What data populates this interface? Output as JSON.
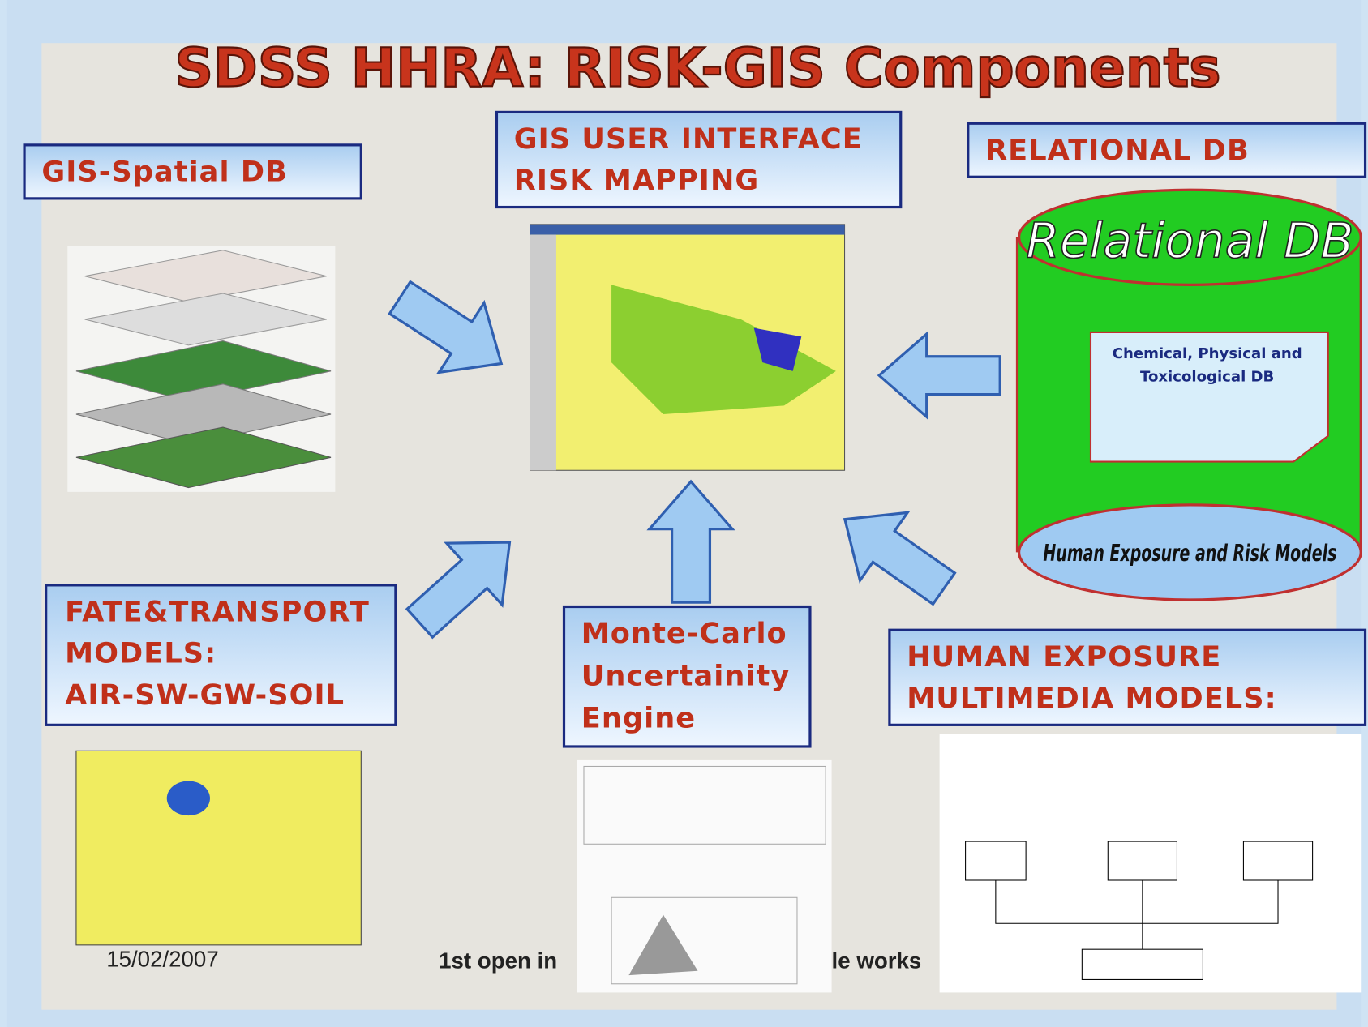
{
  "title": "SDSS HHRA: RISK-GIS Components",
  "boxes": [
    {
      "lines": [
        "GIS-Spatial DB"
      ]
    },
    {
      "lines": [
        "GIS USER INTERFACE",
        "RISK MAPPING"
      ]
    },
    {
      "lines": [
        "RELATIONAL DB"
      ]
    },
    {
      "lines": [
        "FATE&TRANSPORT",
        "MODELS:",
        "AIR-SW-GW-SOIL"
      ]
    },
    {
      "lines": [
        "Monte-Carlo",
        "Uncertainity",
        "Engine"
      ]
    },
    {
      "lines": [
        "HUMAN EXPOSURE",
        "MULTIMEDIA MODELS:"
      ]
    }
  ],
  "cylinder": {
    "top": "Relational DB",
    "note": [
      "Chemical, Physical and",
      "Toxicological DB"
    ],
    "bottom": "Human Exposure and Risk Models"
  },
  "footer": {
    "date": "15/02/2007",
    "left": "1st open in",
    "right": "le works"
  }
}
